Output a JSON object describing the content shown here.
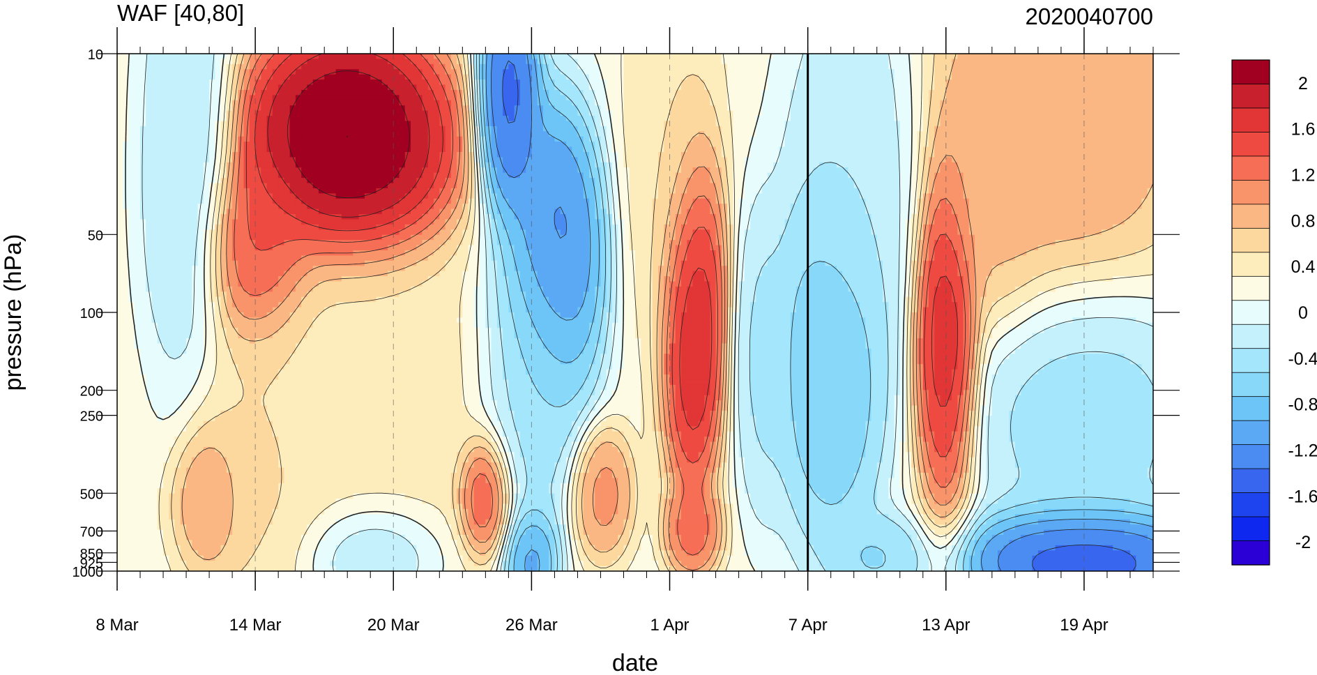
{
  "chart_data": {
    "type": "heatmap",
    "title": "WAF [40,80]",
    "subtitle": "2020040700",
    "xlabel": "date",
    "ylabel": "pressure (hPa)",
    "x_range": [
      "2020-03-08",
      "2020-04-22"
    ],
    "x_ticks": [
      {
        "date": "2020-03-08",
        "label": "8 Mar"
      },
      {
        "date": "2020-03-14",
        "label": "14 Mar"
      },
      {
        "date": "2020-03-20",
        "label": "20 Mar"
      },
      {
        "date": "2020-03-26",
        "label": "26 Mar"
      },
      {
        "date": "2020-04-01",
        "label": "1 Apr"
      },
      {
        "date": "2020-04-07",
        "label": "7 Apr"
      },
      {
        "date": "2020-04-13",
        "label": "13 Apr"
      },
      {
        "date": "2020-04-19",
        "label": "19 Apr"
      }
    ],
    "y_scale": "log",
    "y_range": [
      1000,
      10
    ],
    "y_ticks": [
      10,
      50,
      100,
      200,
      250,
      500,
      700,
      850,
      925,
      1000
    ],
    "vertical_marker_date": "2020-04-07",
    "colorbar": {
      "levels": [
        -2.2,
        -2.0,
        -1.8,
        -1.6,
        -1.4,
        -1.2,
        -1.0,
        -0.8,
        -0.6,
        -0.4,
        -0.2,
        0.0,
        0.2,
        0.4,
        0.6,
        0.8,
        1.0,
        1.2,
        1.4,
        1.6,
        1.8,
        2.0,
        2.2
      ],
      "labels": [
        "2",
        "1.6",
        "1.2",
        "0.8",
        "0.4",
        "0",
        "-0.4",
        "-0.8",
        "-1.2",
        "-1.6",
        "-2"
      ],
      "label_values": [
        2,
        1.6,
        1.2,
        0.8,
        0.4,
        0,
        -0.4,
        -0.8,
        -1.2,
        -1.6,
        -2
      ],
      "colors": [
        "#2a00d6",
        "#0e28f0",
        "#1e44f0",
        "#3866ee",
        "#4a8cf2",
        "#5ba8f5",
        "#6cc4f7",
        "#88d8fa",
        "#a4e6fb",
        "#c4f1fc",
        "#e6fcfd",
        "#fefbe4",
        "#fdedbc",
        "#fcd89e",
        "#fbb783",
        "#f9946a",
        "#f66e55",
        "#ef4a42",
        "#e13536",
        "#c9202e",
        "#a10020"
      ]
    },
    "features": [
      {
        "date": "2020-03-18",
        "p": 22,
        "value": 2.3,
        "sd": 2.4,
        "sp": 0.55
      },
      {
        "date": "2020-03-14",
        "p": 60,
        "value": 1.4,
        "sd": 1.2,
        "sp": 0.45
      },
      {
        "date": "2020-03-18",
        "p": 250,
        "value": 0.35,
        "sd": 3.5,
        "sp": 0.8
      },
      {
        "date": "2020-03-12",
        "p": 500,
        "value": 1.1,
        "sd": 0.8,
        "sp": 0.35
      },
      {
        "date": "2020-03-24",
        "p": 500,
        "value": 1.6,
        "sd": 0.6,
        "sp": 0.28
      },
      {
        "date": "2020-03-29",
        "p": 500,
        "value": 1.0,
        "sd": 0.7,
        "sp": 0.3
      },
      {
        "date": "2020-03-14",
        "p": 400,
        "value": 0.5,
        "sd": 1.5,
        "sp": 0.6
      },
      {
        "date": "2020-03-11",
        "p": 30,
        "value": -0.5,
        "sd": 1.0,
        "sp": 1.2
      },
      {
        "date": "2020-03-25",
        "p": 15,
        "value": -1.7,
        "sd": 0.7,
        "sp": 0.55
      },
      {
        "date": "2020-03-27",
        "p": 60,
        "value": -1.5,
        "sd": 1.1,
        "sp": 0.7
      },
      {
        "date": "2020-03-26",
        "p": 200,
        "value": -0.6,
        "sd": 1.2,
        "sp": 0.8
      },
      {
        "date": "2020-03-26",
        "p": 900,
        "value": -1.3,
        "sd": 0.6,
        "sp": 0.25
      },
      {
        "date": "2020-03-19",
        "p": 850,
        "value": -0.6,
        "sd": 1.5,
        "sp": 0.25
      },
      {
        "date": "2020-04-02",
        "p": 100,
        "value": 1.9,
        "sd": 0.7,
        "sp": 0.8
      },
      {
        "date": "2020-04-02",
        "p": 700,
        "value": 1.2,
        "sd": 0.6,
        "sp": 0.2
      },
      {
        "date": "2020-04-01",
        "p": 20,
        "value": 0.4,
        "sd": 1.0,
        "sp": 1.0
      },
      {
        "date": "2020-04-05",
        "p": 150,
        "value": -0.5,
        "sd": 0.6,
        "sp": 0.7
      },
      {
        "date": "2020-04-08",
        "p": 150,
        "value": -0.9,
        "sd": 1.3,
        "sp": 0.9
      },
      {
        "date": "2020-04-10",
        "p": 900,
        "value": -0.7,
        "sd": 1.0,
        "sp": 0.2
      },
      {
        "date": "2020-04-13",
        "p": 120,
        "value": 1.8,
        "sd": 0.7,
        "sp": 0.8
      },
      {
        "date": "2020-04-18",
        "p": 15,
        "value": 0.9,
        "sd": 2.8,
        "sp": 0.9
      },
      {
        "date": "2020-04-15",
        "p": 35,
        "value": 0.7,
        "sd": 1.2,
        "sp": 0.55
      },
      {
        "date": "2020-04-19",
        "p": 250,
        "value": -0.6,
        "sd": 2.4,
        "sp": 0.6
      },
      {
        "date": "2020-04-19",
        "p": 900,
        "value": -1.8,
        "sd": 2.6,
        "sp": 0.25
      },
      {
        "date": "2020-04-09",
        "p": 25,
        "value": -0.4,
        "sd": 1.5,
        "sp": 0.9
      }
    ],
    "background_value": 0.1
  }
}
